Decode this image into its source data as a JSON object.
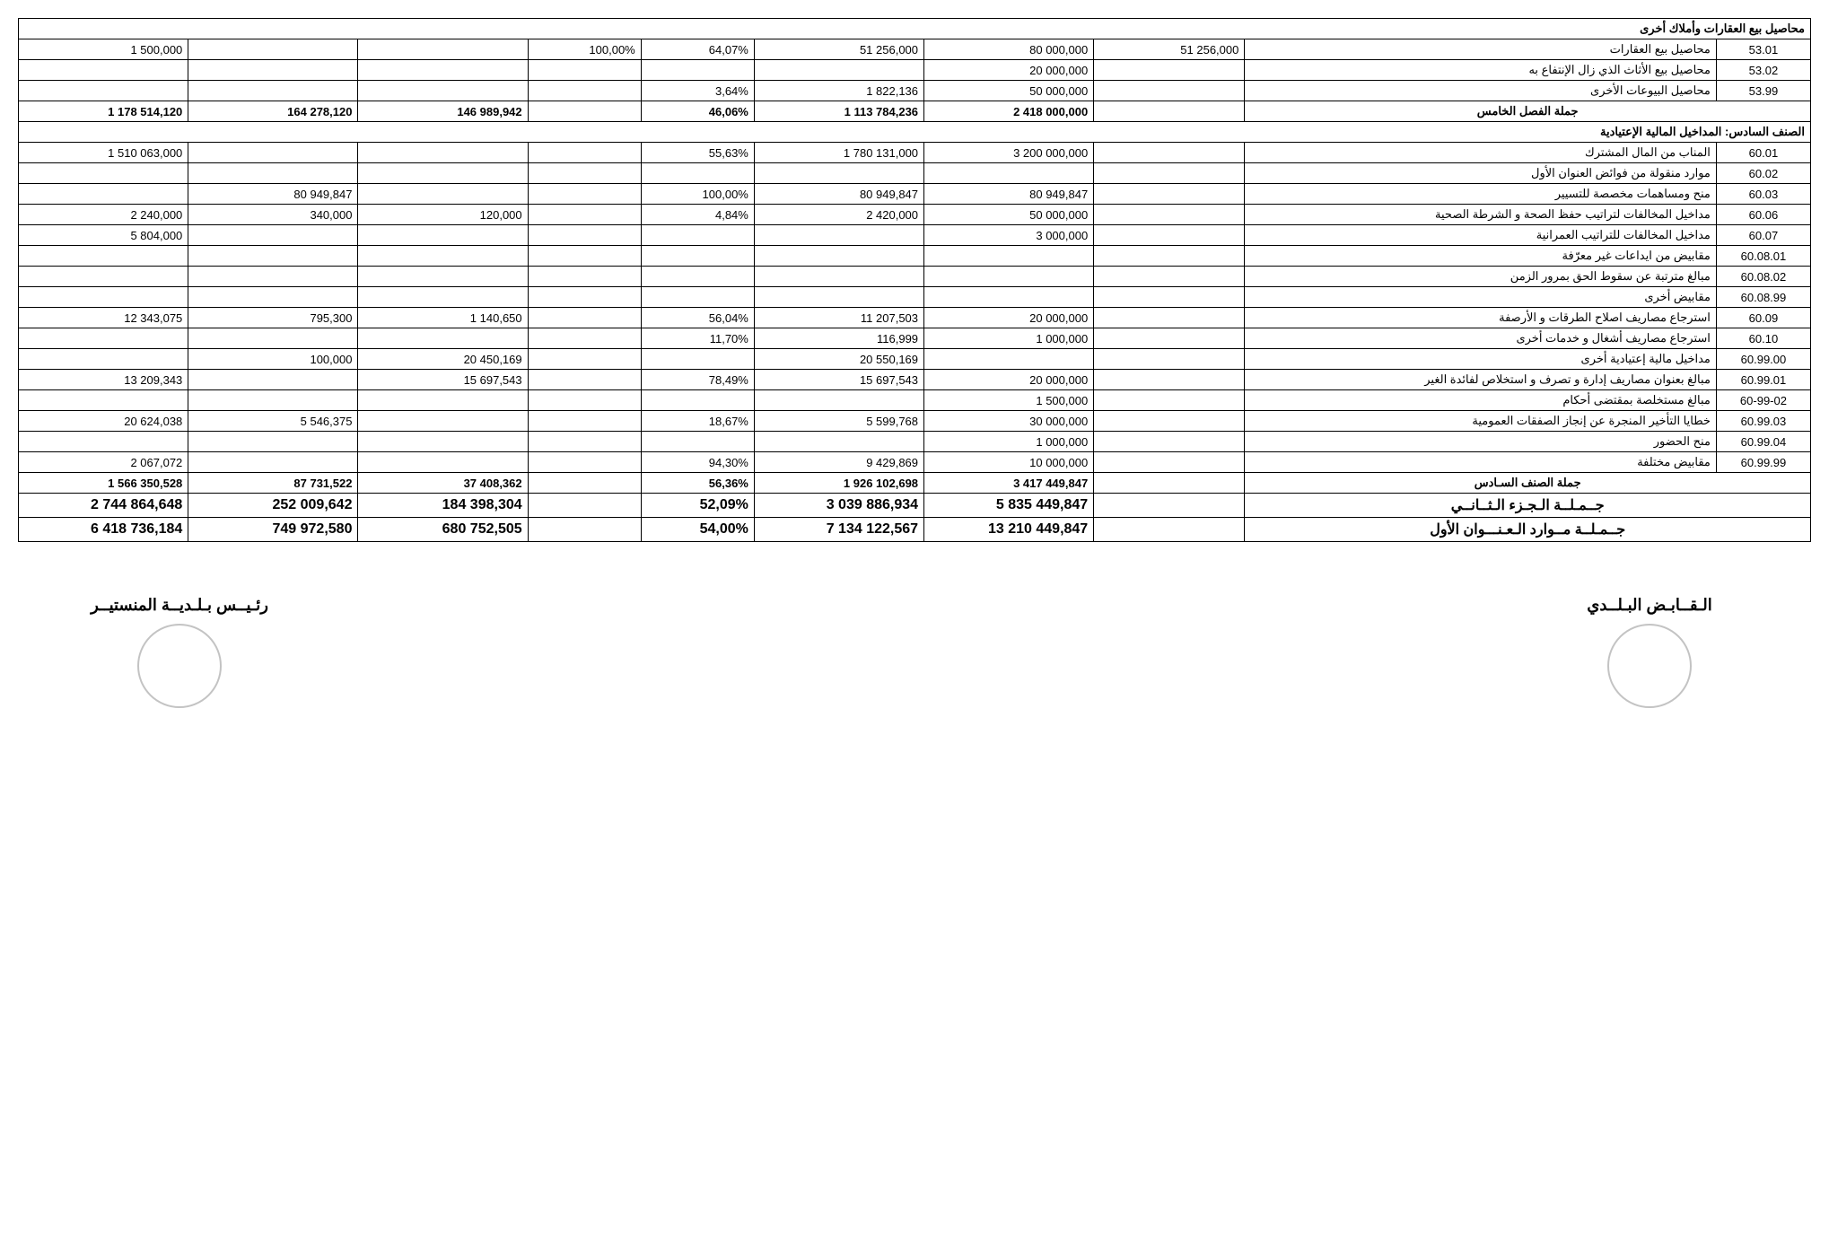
{
  "section1": {
    "title": "محاصيل بيع العقارات وأملاك أخرى"
  },
  "rows1": [
    {
      "code": "53.01",
      "desc": "محاصيل بيع العقارات",
      "c3": "51 256,000",
      "c4": "80 000,000",
      "c5": "51 256,000",
      "c6": "64,07%",
      "c7": "100,00%",
      "c8": "",
      "c9": "",
      "c10": "1 500,000"
    },
    {
      "code": "53.02",
      "desc": "محاصيل بيع الأثاث الذي زال الإنتفاع به",
      "c3": "",
      "c4": "20 000,000",
      "c5": "",
      "c6": "",
      "c7": "",
      "c8": "",
      "c9": "",
      "c10": ""
    },
    {
      "code": "53.99",
      "desc": "محاصيل البيوعات الأخرى",
      "c3": "",
      "c4": "50 000,000",
      "c5": "1 822,136",
      "c6": "3,64%",
      "c7": "",
      "c8": "",
      "c9": "",
      "c10": ""
    }
  ],
  "total1": {
    "label": "جملة الفصل الخامس",
    "c4": "2 418 000,000",
    "c5": "1 113 784,236",
    "c6": "46,06%",
    "c7": "",
    "c8": "146 989,942",
    "c9": "164 278,120",
    "c10": "1 178 514,120"
  },
  "section2": {
    "title": "الصنف السادس: المداخيل المالية الإعتيادية"
  },
  "rows2": [
    {
      "code": "60.01",
      "desc": "المناب من المال المشترك",
      "c3": "",
      "c4": "3 200 000,000",
      "c5": "1 780 131,000",
      "c6": "55,63%",
      "c7": "",
      "c8": "",
      "c9": "",
      "c10": "1 510 063,000"
    },
    {
      "code": "60.02",
      "desc": "موارد منقولة من فوائض العنوان الأول",
      "c3": "",
      "c4": "",
      "c5": "",
      "c6": "",
      "c7": "",
      "c8": "",
      "c9": "",
      "c10": ""
    },
    {
      "code": "60.03",
      "desc": "منح ومساهمات مخصصة للتسيير",
      "c3": "",
      "c4": "80 949,847",
      "c5": "80 949,847",
      "c6": "100,00%",
      "c7": "",
      "c8": "",
      "c9": "80 949,847",
      "c10": ""
    },
    {
      "code": "60.06",
      "desc": "مداخيل المخالفات لتراتيب حفظ الصحة و الشرطة الصحية",
      "c3": "",
      "c4": "50 000,000",
      "c5": "2 420,000",
      "c6": "4,84%",
      "c7": "",
      "c8": "120,000",
      "c9": "340,000",
      "c10": "2 240,000"
    },
    {
      "code": "60.07",
      "desc": "مداخيل المخالفات للتراتيب العمرانية",
      "c3": "",
      "c4": "3 000,000",
      "c5": "",
      "c6": "",
      "c7": "",
      "c8": "",
      "c9": "",
      "c10": "5 804,000"
    },
    {
      "code": "60.08.01",
      "desc": "مقابيض من ايداعات غير معرّفة",
      "c3": "",
      "c4": "",
      "c5": "",
      "c6": "",
      "c7": "",
      "c8": "",
      "c9": "",
      "c10": ""
    },
    {
      "code": "60.08.02",
      "desc": "مبالغ مترتبة عن سقوط الحق بمرور الزمن",
      "c3": "",
      "c4": "",
      "c5": "",
      "c6": "",
      "c7": "",
      "c8": "",
      "c9": "",
      "c10": ""
    },
    {
      "code": "60.08.99",
      "desc": "مقابيض أخرى",
      "c3": "",
      "c4": "",
      "c5": "",
      "c6": "",
      "c7": "",
      "c8": "",
      "c9": "",
      "c10": ""
    },
    {
      "code": "60.09",
      "desc": "استرجاع مصاريف اصلاح الطرقات و الأرصفة",
      "c3": "",
      "c4": "20 000,000",
      "c5": "11 207,503",
      "c6": "56,04%",
      "c7": "",
      "c8": "1 140,650",
      "c9": "795,300",
      "c10": "12 343,075"
    },
    {
      "code": "60.10",
      "desc": "استرجاع مصاريف أشغال و خدمات أخرى",
      "c3": "",
      "c4": "1 000,000",
      "c5": "116,999",
      "c6": "11,70%",
      "c7": "",
      "c8": "",
      "c9": "",
      "c10": ""
    },
    {
      "code": "60.99.00",
      "desc": "مداخيل مالية إعتيادية أخرى",
      "c3": "",
      "c4": "",
      "c5": "20 550,169",
      "c6": "",
      "c7": "",
      "c8": "20 450,169",
      "c9": "100,000",
      "c10": ""
    },
    {
      "code": "60.99.01",
      "desc": "مبالغ بعنوان مصاريف إدارة و تصرف و استخلاص لفائدة الغير",
      "c3": "",
      "c4": "20 000,000",
      "c5": "15 697,543",
      "c6": "78,49%",
      "c7": "",
      "c8": "15 697,543",
      "c9": "",
      "c10": "13 209,343"
    },
    {
      "code": "60-99-02",
      "desc": "مبالغ مستخلصة بمقتضى أحكام",
      "c3": "",
      "c4": "1 500,000",
      "c5": "",
      "c6": "",
      "c7": "",
      "c8": "",
      "c9": "",
      "c10": ""
    },
    {
      "code": "60.99.03",
      "desc": "خطايا التأخير المنجرة عن إنجاز الصفقات العمومية",
      "c3": "",
      "c4": "30 000,000",
      "c5": "5 599,768",
      "c6": "18,67%",
      "c7": "",
      "c8": "",
      "c9": "5 546,375",
      "c10": "20 624,038"
    },
    {
      "code": "60.99.04",
      "desc": "منح الحضور",
      "c3": "",
      "c4": "1 000,000",
      "c5": "",
      "c6": "",
      "c7": "",
      "c8": "",
      "c9": "",
      "c10": ""
    },
    {
      "code": "60.99.99",
      "desc": "مقابيض مختلفة",
      "c3": "",
      "c4": "10 000,000",
      "c5": "9 429,869",
      "c6": "94,30%",
      "c7": "",
      "c8": "",
      "c9": "",
      "c10": "2 067,072"
    }
  ],
  "total2": {
    "label": "جملة الصنف السـادس",
    "c4": "3 417 449,847",
    "c5": "1 926 102,698",
    "c6": "56,36%",
    "c7": "",
    "c8": "37 408,362",
    "c9": "87 731,522",
    "c10": "1 566 350,528"
  },
  "total3": {
    "label": "جــمـلــة الـجـزء الـثــانــي",
    "c4": "5 835 449,847",
    "c5": "3 039 886,934",
    "c6": "52,09%",
    "c7": "",
    "c8": "184 398,304",
    "c9": "252 009,642",
    "c10": "2 744 864,648"
  },
  "total4": {
    "label": "جــمـلــة مــوارد الـعـنـــوان الأول",
    "c4": "13 210 449,847",
    "c5": "7 134 122,567",
    "c6": "54,00%",
    "c7": "",
    "c8": "680 752,505",
    "c9": "749 972,580",
    "c10": "6 418 736,184"
  },
  "sig": {
    "right": "الـقــابـض البـلــدي",
    "left": "رئـيــس بـلـديــة المنستيــر"
  },
  "style": {
    "border_color": "#000000",
    "background": "#ffffff",
    "text_color": "#000000",
    "font_size_body": 13,
    "font_size_total": 16,
    "col_widths_pct": [
      5,
      25,
      8,
      9,
      9,
      6,
      6,
      9,
      9,
      9
    ]
  }
}
